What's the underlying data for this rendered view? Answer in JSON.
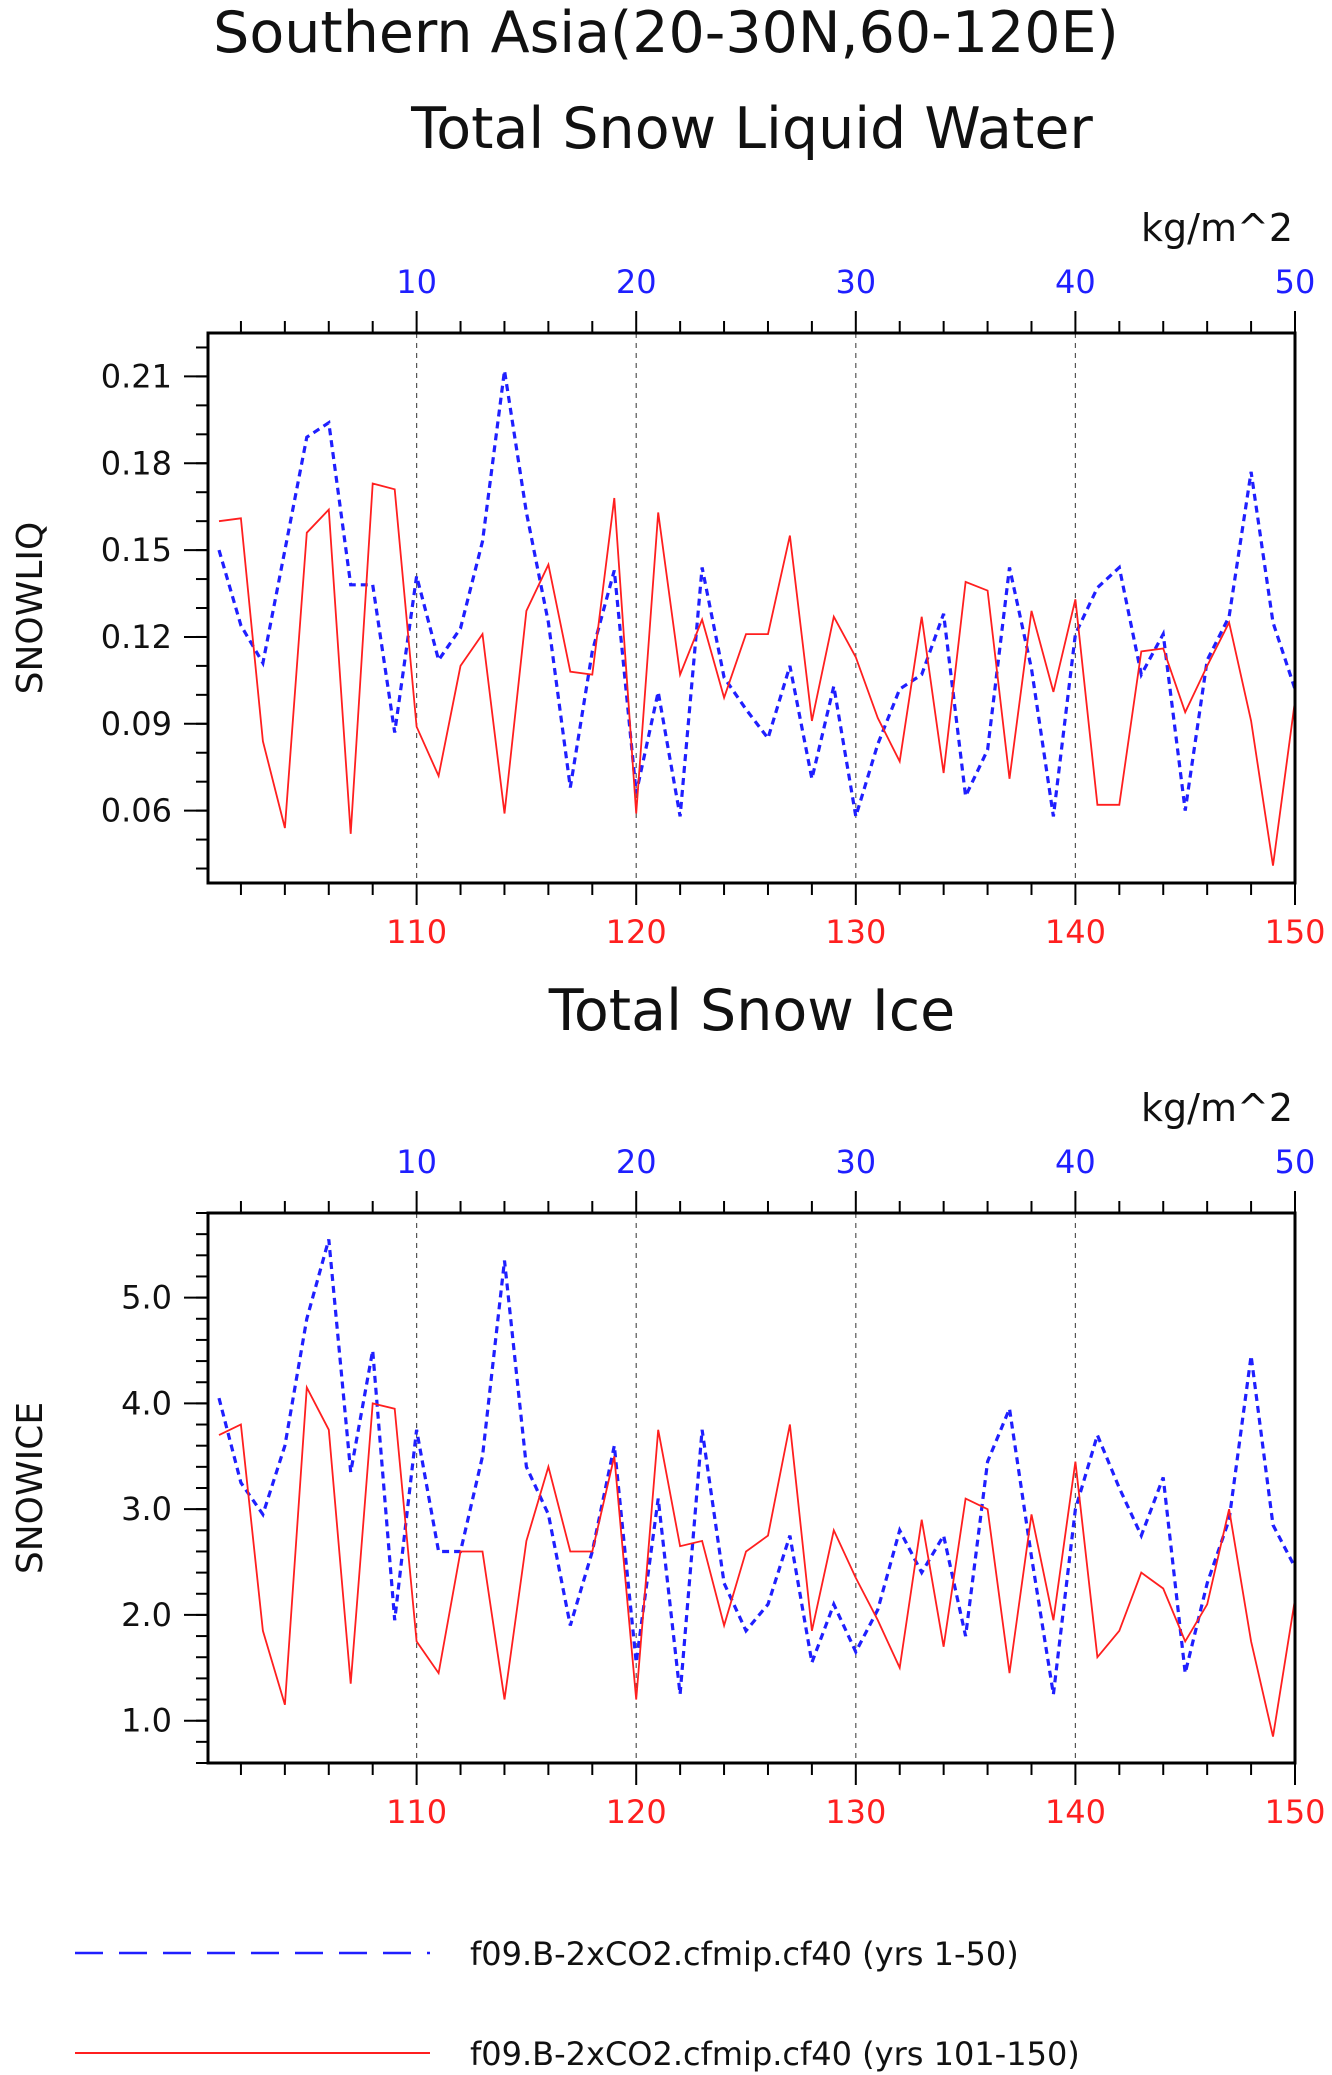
{
  "colors": {
    "series_blue": "#1f1fff",
    "series_red": "#ff1f1f",
    "axis": "#000000",
    "grid": "#555555"
  },
  "page_title": "Southern Asia(20-30N,60-120E)",
  "chart_data": [
    {
      "type": "line",
      "title": "Total Snow Liquid Water",
      "ylabel": "SNOWLIQ",
      "unit": "kg/m^2",
      "top_axis_ticks": [
        "10",
        "20",
        "30",
        "40",
        "50"
      ],
      "bottom_axis_ticks": [
        "110",
        "120",
        "130",
        "140",
        "150"
      ],
      "y_ticks": [
        "0.21",
        "0.18",
        "0.15",
        "0.12",
        "0.09",
        "0.06"
      ],
      "xlim": [
        0.5,
        50
      ],
      "ylim": [
        0.035,
        0.225
      ],
      "grid": "vertical dashed at major ticks",
      "series": [
        {
          "name": "f09.B-2xCO2.cfmip.cf40 (yrs 1-50)",
          "x_axis": "top",
          "style": "dashed",
          "x": [
            1,
            2,
            3,
            4,
            5,
            6,
            7,
            8,
            9,
            10,
            11,
            12,
            13,
            14,
            15,
            16,
            17,
            18,
            19,
            20,
            21,
            22,
            23,
            24,
            25,
            26,
            27,
            28,
            29,
            30,
            31,
            32,
            33,
            34,
            35,
            36,
            37,
            38,
            39,
            40,
            41,
            42,
            43,
            44,
            45,
            46,
            47,
            48,
            49,
            50
          ],
          "values": [
            0.15,
            0.124,
            0.111,
            0.15,
            0.189,
            0.194,
            0.138,
            0.138,
            0.087,
            0.141,
            0.112,
            0.123,
            0.153,
            0.212,
            0.163,
            0.125,
            0.068,
            0.115,
            0.143,
            0.066,
            0.101,
            0.058,
            0.144,
            0.106,
            0.095,
            0.085,
            0.11,
            0.071,
            0.103,
            0.058,
            0.083,
            0.102,
            0.107,
            0.128,
            0.065,
            0.081,
            0.144,
            0.109,
            0.058,
            0.121,
            0.137,
            0.144,
            0.107,
            0.121,
            0.06,
            0.112,
            0.127,
            0.177,
            0.125,
            0.102
          ]
        },
        {
          "name": "f09.B-2xCO2.cfmip.cf40 (yrs 101-150)",
          "x_axis": "bottom",
          "style": "solid",
          "x": [
            101,
            102,
            103,
            104,
            105,
            106,
            107,
            108,
            109,
            110,
            111,
            112,
            113,
            114,
            115,
            116,
            117,
            118,
            119,
            120,
            121,
            122,
            123,
            124,
            125,
            126,
            127,
            128,
            129,
            130,
            131,
            132,
            133,
            134,
            135,
            136,
            137,
            138,
            139,
            140,
            141,
            142,
            143,
            144,
            145,
            146,
            147,
            148,
            149,
            150
          ],
          "values": [
            0.16,
            0.161,
            0.084,
            0.054,
            0.156,
            0.164,
            0.052,
            0.173,
            0.171,
            0.089,
            0.072,
            0.11,
            0.121,
            0.059,
            0.129,
            0.145,
            0.108,
            0.107,
            0.168,
            0.059,
            0.163,
            0.107,
            0.126,
            0.099,
            0.121,
            0.121,
            0.155,
            0.091,
            0.127,
            0.113,
            0.092,
            0.077,
            0.127,
            0.073,
            0.139,
            0.136,
            0.071,
            0.129,
            0.101,
            0.133,
            0.062,
            0.062,
            0.115,
            0.116,
            0.094,
            0.11,
            0.125,
            0.091,
            0.041,
            0.098
          ]
        }
      ]
    },
    {
      "type": "line",
      "title": "Total Snow Ice",
      "ylabel": "SNOWICE",
      "unit": "kg/m^2",
      "top_axis_ticks": [
        "10",
        "20",
        "30",
        "40",
        "50"
      ],
      "bottom_axis_ticks": [
        "110",
        "120",
        "130",
        "140",
        "150"
      ],
      "y_ticks": [
        "5.0",
        "4.0",
        "3.0",
        "2.0",
        "1.0"
      ],
      "xlim": [
        0.5,
        50
      ],
      "ylim": [
        0.6,
        5.8
      ],
      "grid": "vertical dashed at major ticks",
      "series": [
        {
          "name": "f09.B-2xCO2.cfmip.cf40 (yrs 1-50)",
          "x_axis": "top",
          "style": "dashed",
          "x": [
            1,
            2,
            3,
            4,
            5,
            6,
            7,
            8,
            9,
            10,
            11,
            12,
            13,
            14,
            15,
            16,
            17,
            18,
            19,
            20,
            21,
            22,
            23,
            24,
            25,
            26,
            27,
            28,
            29,
            30,
            31,
            32,
            33,
            34,
            35,
            36,
            37,
            38,
            39,
            40,
            41,
            42,
            43,
            44,
            45,
            46,
            47,
            48,
            49,
            50
          ],
          "values": [
            4.05,
            3.25,
            2.95,
            3.6,
            4.8,
            5.55,
            3.35,
            4.5,
            1.95,
            3.75,
            2.6,
            2.6,
            3.5,
            5.35,
            3.4,
            2.95,
            1.9,
            2.6,
            3.6,
            1.55,
            3.1,
            1.25,
            3.75,
            2.3,
            1.85,
            2.1,
            2.75,
            1.55,
            2.1,
            1.65,
            2.05,
            2.8,
            2.4,
            2.75,
            1.8,
            3.45,
            3.95,
            2.55,
            1.25,
            3.0,
            3.7,
            3.2,
            2.75,
            3.3,
            1.45,
            2.3,
            2.9,
            4.45,
            2.85,
            2.45
          ]
        },
        {
          "name": "f09.B-2xCO2.cfmip.cf40 (yrs 101-150)",
          "x_axis": "bottom",
          "style": "solid",
          "x": [
            101,
            102,
            103,
            104,
            105,
            106,
            107,
            108,
            109,
            110,
            111,
            112,
            113,
            114,
            115,
            116,
            117,
            118,
            119,
            120,
            121,
            122,
            123,
            124,
            125,
            126,
            127,
            128,
            129,
            130,
            131,
            132,
            133,
            134,
            135,
            136,
            137,
            138,
            139,
            140,
            141,
            142,
            143,
            144,
            145,
            146,
            147,
            148,
            149,
            150
          ],
          "values": [
            3.7,
            3.8,
            1.85,
            1.15,
            4.15,
            3.75,
            1.35,
            4.0,
            3.95,
            1.75,
            1.45,
            2.6,
            2.6,
            1.2,
            2.7,
            3.4,
            2.6,
            2.6,
            3.5,
            1.2,
            3.75,
            2.65,
            2.7,
            1.9,
            2.6,
            2.75,
            3.8,
            1.85,
            2.8,
            2.35,
            1.95,
            1.5,
            2.9,
            1.7,
            3.1,
            3.0,
            1.45,
            2.95,
            1.95,
            3.45,
            1.6,
            1.85,
            2.4,
            2.25,
            1.75,
            2.1,
            3.0,
            1.75,
            0.85,
            2.15
          ]
        }
      ]
    }
  ],
  "legend": [
    {
      "label": "f09.B-2xCO2.cfmip.cf40 (yrs 1-50)",
      "style": "dashed",
      "color": "#1f1fff"
    },
    {
      "label": "f09.B-2xCO2.cfmip.cf40 (yrs 101-150)",
      "style": "solid",
      "color": "#ff1f1f"
    }
  ]
}
